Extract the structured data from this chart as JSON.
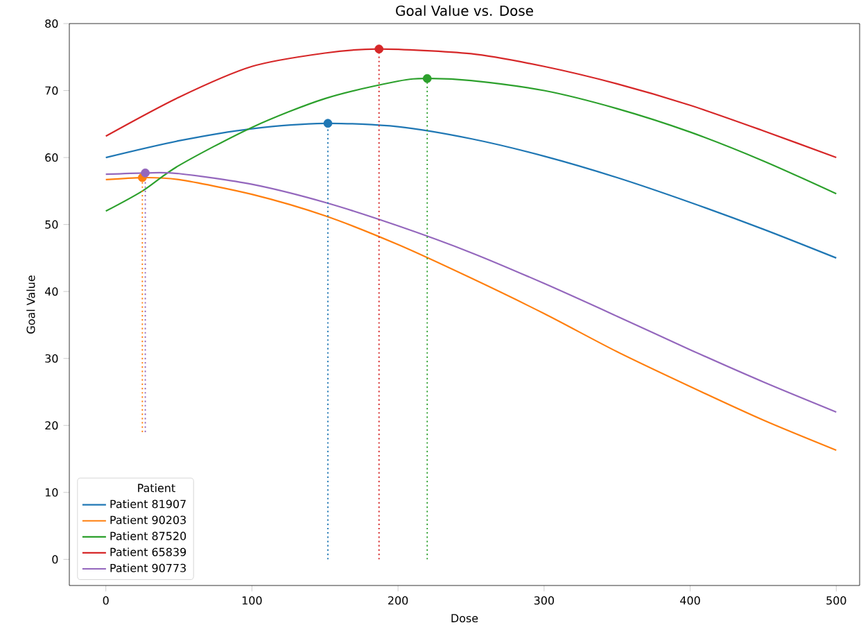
{
  "chart_data": {
    "type": "line",
    "title": "Goal Value vs. Dose",
    "xlabel": "Dose",
    "ylabel": "Goal Value",
    "legend_title": "Patient",
    "legend": "bottom left",
    "grid": false,
    "marker": "none",
    "line_style": "solid",
    "xlim": [
      -25,
      516
    ],
    "ylim": [
      -3.9,
      80
    ],
    "xticks": [
      0,
      100,
      200,
      300,
      400,
      500
    ],
    "yticks": [
      0,
      10,
      20,
      30,
      40,
      50,
      60,
      70,
      80
    ],
    "series": [
      {
        "name": "Patient 81907",
        "color": "#1f77b4",
        "x": [
          0,
          50,
          100,
          150,
          200,
          250,
          300,
          350,
          400,
          450,
          500
        ],
        "values": [
          60,
          62.5,
          64.3,
          65.1,
          64.6,
          62.8,
          60.2,
          57,
          53.3,
          49.3,
          45
        ]
      },
      {
        "name": "Patient 90203",
        "color": "#ff7f0e",
        "x": [
          0,
          25,
          50,
          100,
          150,
          200,
          250,
          300,
          350,
          400,
          450,
          500
        ],
        "values": [
          56.7,
          57,
          56.7,
          54.5,
          51.3,
          47,
          42,
          36.7,
          31,
          25.8,
          20.8,
          16.3
        ]
      },
      {
        "name": "Patient 87520",
        "color": "#2ca02c",
        "x": [
          0,
          25,
          50,
          100,
          150,
          200,
          220,
          250,
          300,
          350,
          400,
          450,
          500
        ],
        "values": [
          52,
          55,
          58.8,
          64.5,
          68.8,
          71.4,
          71.8,
          71.5,
          70,
          67.3,
          63.8,
          59.5,
          54.6
        ]
      },
      {
        "name": "Patient 65839",
        "color": "#d62728",
        "x": [
          0,
          50,
          100,
          150,
          187,
          250,
          300,
          350,
          400,
          450,
          500
        ],
        "values": [
          63.2,
          69,
          73.6,
          75.6,
          76.2,
          75.5,
          73.6,
          71,
          67.8,
          64,
          60
        ]
      },
      {
        "name": "Patient 90773",
        "color": "#9467bd",
        "x": [
          0,
          27,
          50,
          100,
          150,
          200,
          250,
          300,
          350,
          400,
          450,
          500
        ],
        "values": [
          57.5,
          57.7,
          57.6,
          56,
          53.3,
          49.8,
          45.8,
          41.2,
          36.3,
          31.3,
          26.5,
          22
        ]
      },
      {
        "type": "line",
        "line_style": "dotted",
        "color": "#1f77b4",
        "x": [
          152,
          152
        ],
        "values": [
          0,
          65.1
        ]
      },
      {
        "type": "line",
        "line_style": "dotted",
        "color": "#ff7f0e",
        "x": [
          25,
          25
        ],
        "values": [
          19,
          57
        ]
      },
      {
        "type": "line",
        "line_style": "dotted",
        "color": "#2ca02c",
        "x": [
          220,
          220
        ],
        "values": [
          0,
          71.8
        ]
      },
      {
        "type": "line",
        "line_style": "dotted",
        "color": "#d62728",
        "x": [
          187,
          187
        ],
        "values": [
          0,
          76.2
        ]
      },
      {
        "type": "line",
        "line_style": "dotted",
        "color": "#9467bd",
        "x": [
          27,
          27
        ],
        "values": [
          19,
          57.7
        ]
      },
      {
        "type": "scatter",
        "marker": "circle",
        "color": "#1f77b4",
        "x": [
          152
        ],
        "values": [
          65.1
        ]
      },
      {
        "type": "scatter",
        "marker": "circle",
        "color": "#ff7f0e",
        "x": [
          25
        ],
        "values": [
          57
        ]
      },
      {
        "type": "scatter",
        "marker": "circle",
        "color": "#2ca02c",
        "x": [
          220
        ],
        "values": [
          71.8
        ]
      },
      {
        "type": "scatter",
        "marker": "circle",
        "color": "#d62728",
        "x": [
          187
        ],
        "values": [
          76.2
        ]
      },
      {
        "type": "scatter",
        "marker": "circle",
        "color": "#9467bd",
        "x": [
          27
        ],
        "values": [
          57.7
        ]
      }
    ]
  }
}
